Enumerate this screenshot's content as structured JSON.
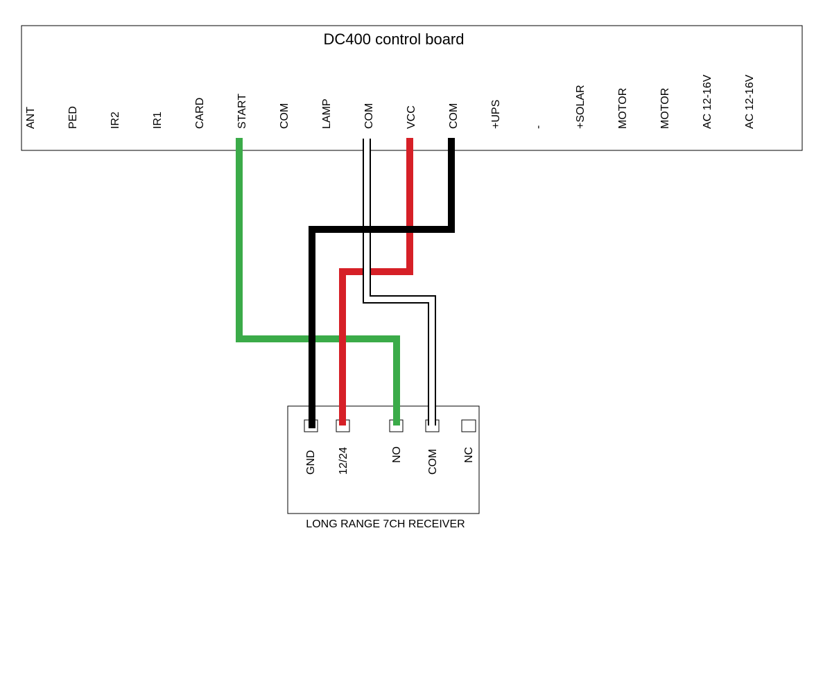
{
  "control_board": {
    "title": "DC400 control board",
    "terminals": [
      "ANT",
      "PED",
      "IR2",
      "IR1",
      "CARD",
      "START",
      "COM",
      "LAMP",
      "COM",
      "VCC",
      "COM",
      "+UPS",
      "-",
      "+SOLAR",
      "MOTOR",
      "MOTOR",
      "AC 12-16V",
      "AC 12-16V"
    ]
  },
  "receiver": {
    "title": "LONG RANGE 7CH RECEIVER",
    "terminals": [
      "GND",
      "12/24",
      "NO",
      "COM",
      "NC"
    ]
  },
  "wires": [
    {
      "from": "START",
      "to": "NO",
      "color": "#3bab49"
    },
    {
      "from": "COM",
      "to": "GND",
      "color": "#000000"
    },
    {
      "from": "VCC",
      "to": "12/24",
      "color": "#d62027"
    },
    {
      "from": "COM",
      "to": "COM",
      "color": "#ffffff",
      "outline": "#000000"
    }
  ]
}
